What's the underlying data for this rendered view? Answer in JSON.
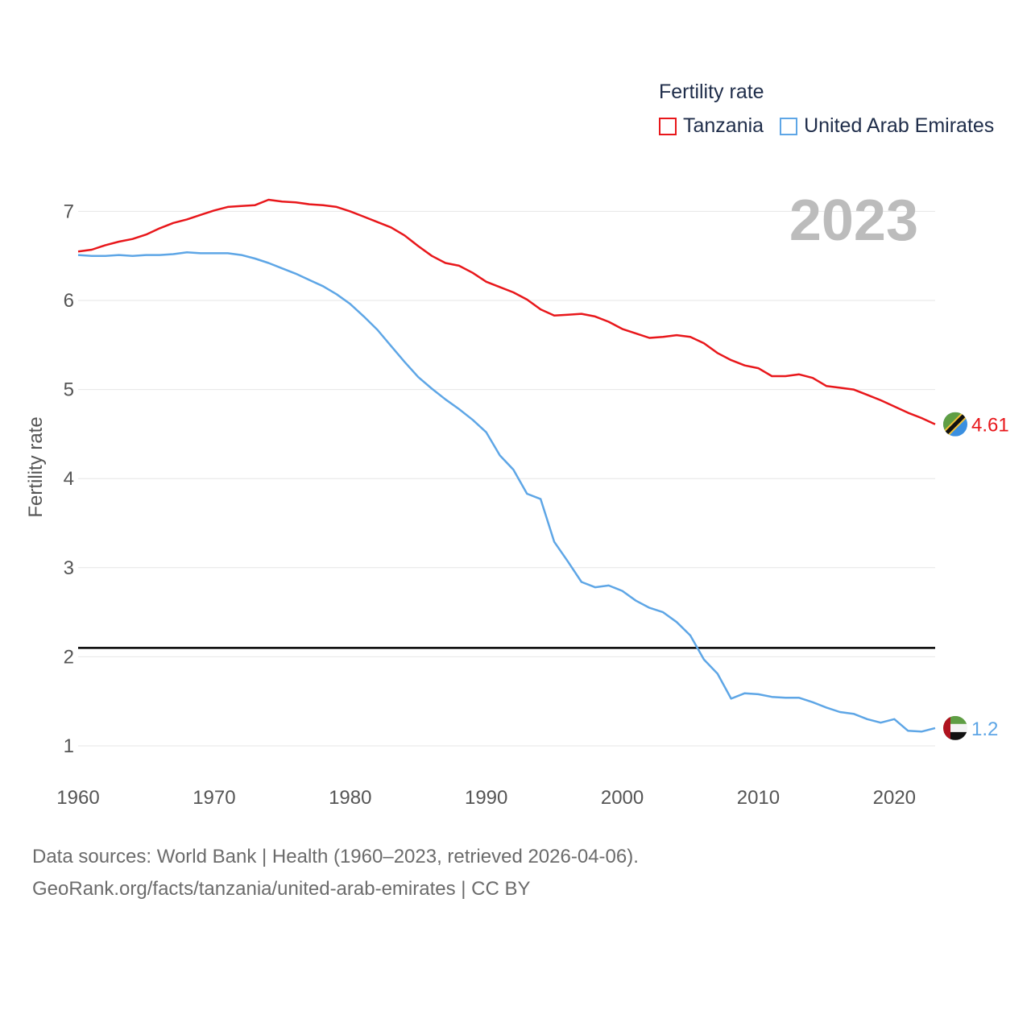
{
  "legend": {
    "title": "Fertility rate",
    "items": [
      {
        "label": "Tanzania",
        "color": "#e8171b"
      },
      {
        "label": "United Arab Emirates",
        "color": "#5ea6e6"
      }
    ]
  },
  "year_label": "2023",
  "sources": {
    "line1": "Data sources: World Bank | Health (1960–2023, retrieved 2026-04-06).",
    "line2": "GeoRank.org/facts/tanzania/united-arab-emirates | CC BY"
  },
  "flags": [
    {
      "name": "tanzania-flag-icon"
    },
    {
      "name": "uae-flag-icon"
    }
  ],
  "chart_data": {
    "type": "line",
    "title": "Fertility rate",
    "xlabel": "",
    "ylabel": "Fertility rate",
    "xlim": [
      1960,
      2023
    ],
    "ylim": [
      0.7,
      7.3
    ],
    "xticks": [
      1960,
      1970,
      1980,
      1990,
      2000,
      2010,
      2020
    ],
    "yticks": [
      1,
      2,
      3,
      4,
      5,
      6,
      7
    ],
    "grid": true,
    "reference_line": 2.1,
    "x": [
      1960,
      1961,
      1962,
      1963,
      1964,
      1965,
      1966,
      1967,
      1968,
      1969,
      1970,
      1971,
      1972,
      1973,
      1974,
      1975,
      1976,
      1977,
      1978,
      1979,
      1980,
      1981,
      1982,
      1983,
      1984,
      1985,
      1986,
      1987,
      1988,
      1989,
      1990,
      1991,
      1992,
      1993,
      1994,
      1995,
      1996,
      1997,
      1998,
      1999,
      2000,
      2001,
      2002,
      2003,
      2004,
      2005,
      2006,
      2007,
      2008,
      2009,
      2010,
      2011,
      2012,
      2013,
      2014,
      2015,
      2016,
      2017,
      2018,
      2019,
      2020,
      2021,
      2022,
      2023
    ],
    "series": [
      {
        "name": "Tanzania",
        "color": "#e8171b",
        "end_label": "4.61",
        "values": [
          6.55,
          6.57,
          6.62,
          6.66,
          6.69,
          6.74,
          6.81,
          6.87,
          6.91,
          6.96,
          7.01,
          7.05,
          7.06,
          7.07,
          7.13,
          7.11,
          7.1,
          7.08,
          7.07,
          7.05,
          7.0,
          6.94,
          6.88,
          6.82,
          6.73,
          6.61,
          6.5,
          6.42,
          6.39,
          6.31,
          6.21,
          6.15,
          6.09,
          6.01,
          5.9,
          5.83,
          5.84,
          5.85,
          5.82,
          5.76,
          5.68,
          5.63,
          5.58,
          5.59,
          5.61,
          5.59,
          5.52,
          5.41,
          5.33,
          5.27,
          5.24,
          5.15,
          5.15,
          5.17,
          5.13,
          5.04,
          5.02,
          5.0,
          4.94,
          4.88,
          4.81,
          4.74,
          4.68,
          4.61
        ]
      },
      {
        "name": "United Arab Emirates",
        "color": "#5ea6e6",
        "end_label": "1.2",
        "values": [
          6.51,
          6.5,
          6.5,
          6.51,
          6.5,
          6.51,
          6.51,
          6.52,
          6.54,
          6.53,
          6.53,
          6.53,
          6.51,
          6.47,
          6.42,
          6.36,
          6.3,
          6.23,
          6.16,
          6.07,
          5.96,
          5.82,
          5.67,
          5.49,
          5.31,
          5.14,
          5.01,
          4.89,
          4.78,
          4.66,
          4.52,
          4.26,
          4.1,
          3.83,
          3.77,
          3.29,
          3.07,
          2.84,
          2.78,
          2.8,
          2.74,
          2.63,
          2.55,
          2.5,
          2.39,
          2.24,
          1.97,
          1.81,
          1.53,
          1.59,
          1.58,
          1.55,
          1.54,
          1.54,
          1.49,
          1.43,
          1.38,
          1.36,
          1.3,
          1.26,
          1.3,
          1.17,
          1.16,
          1.2
        ]
      }
    ]
  }
}
